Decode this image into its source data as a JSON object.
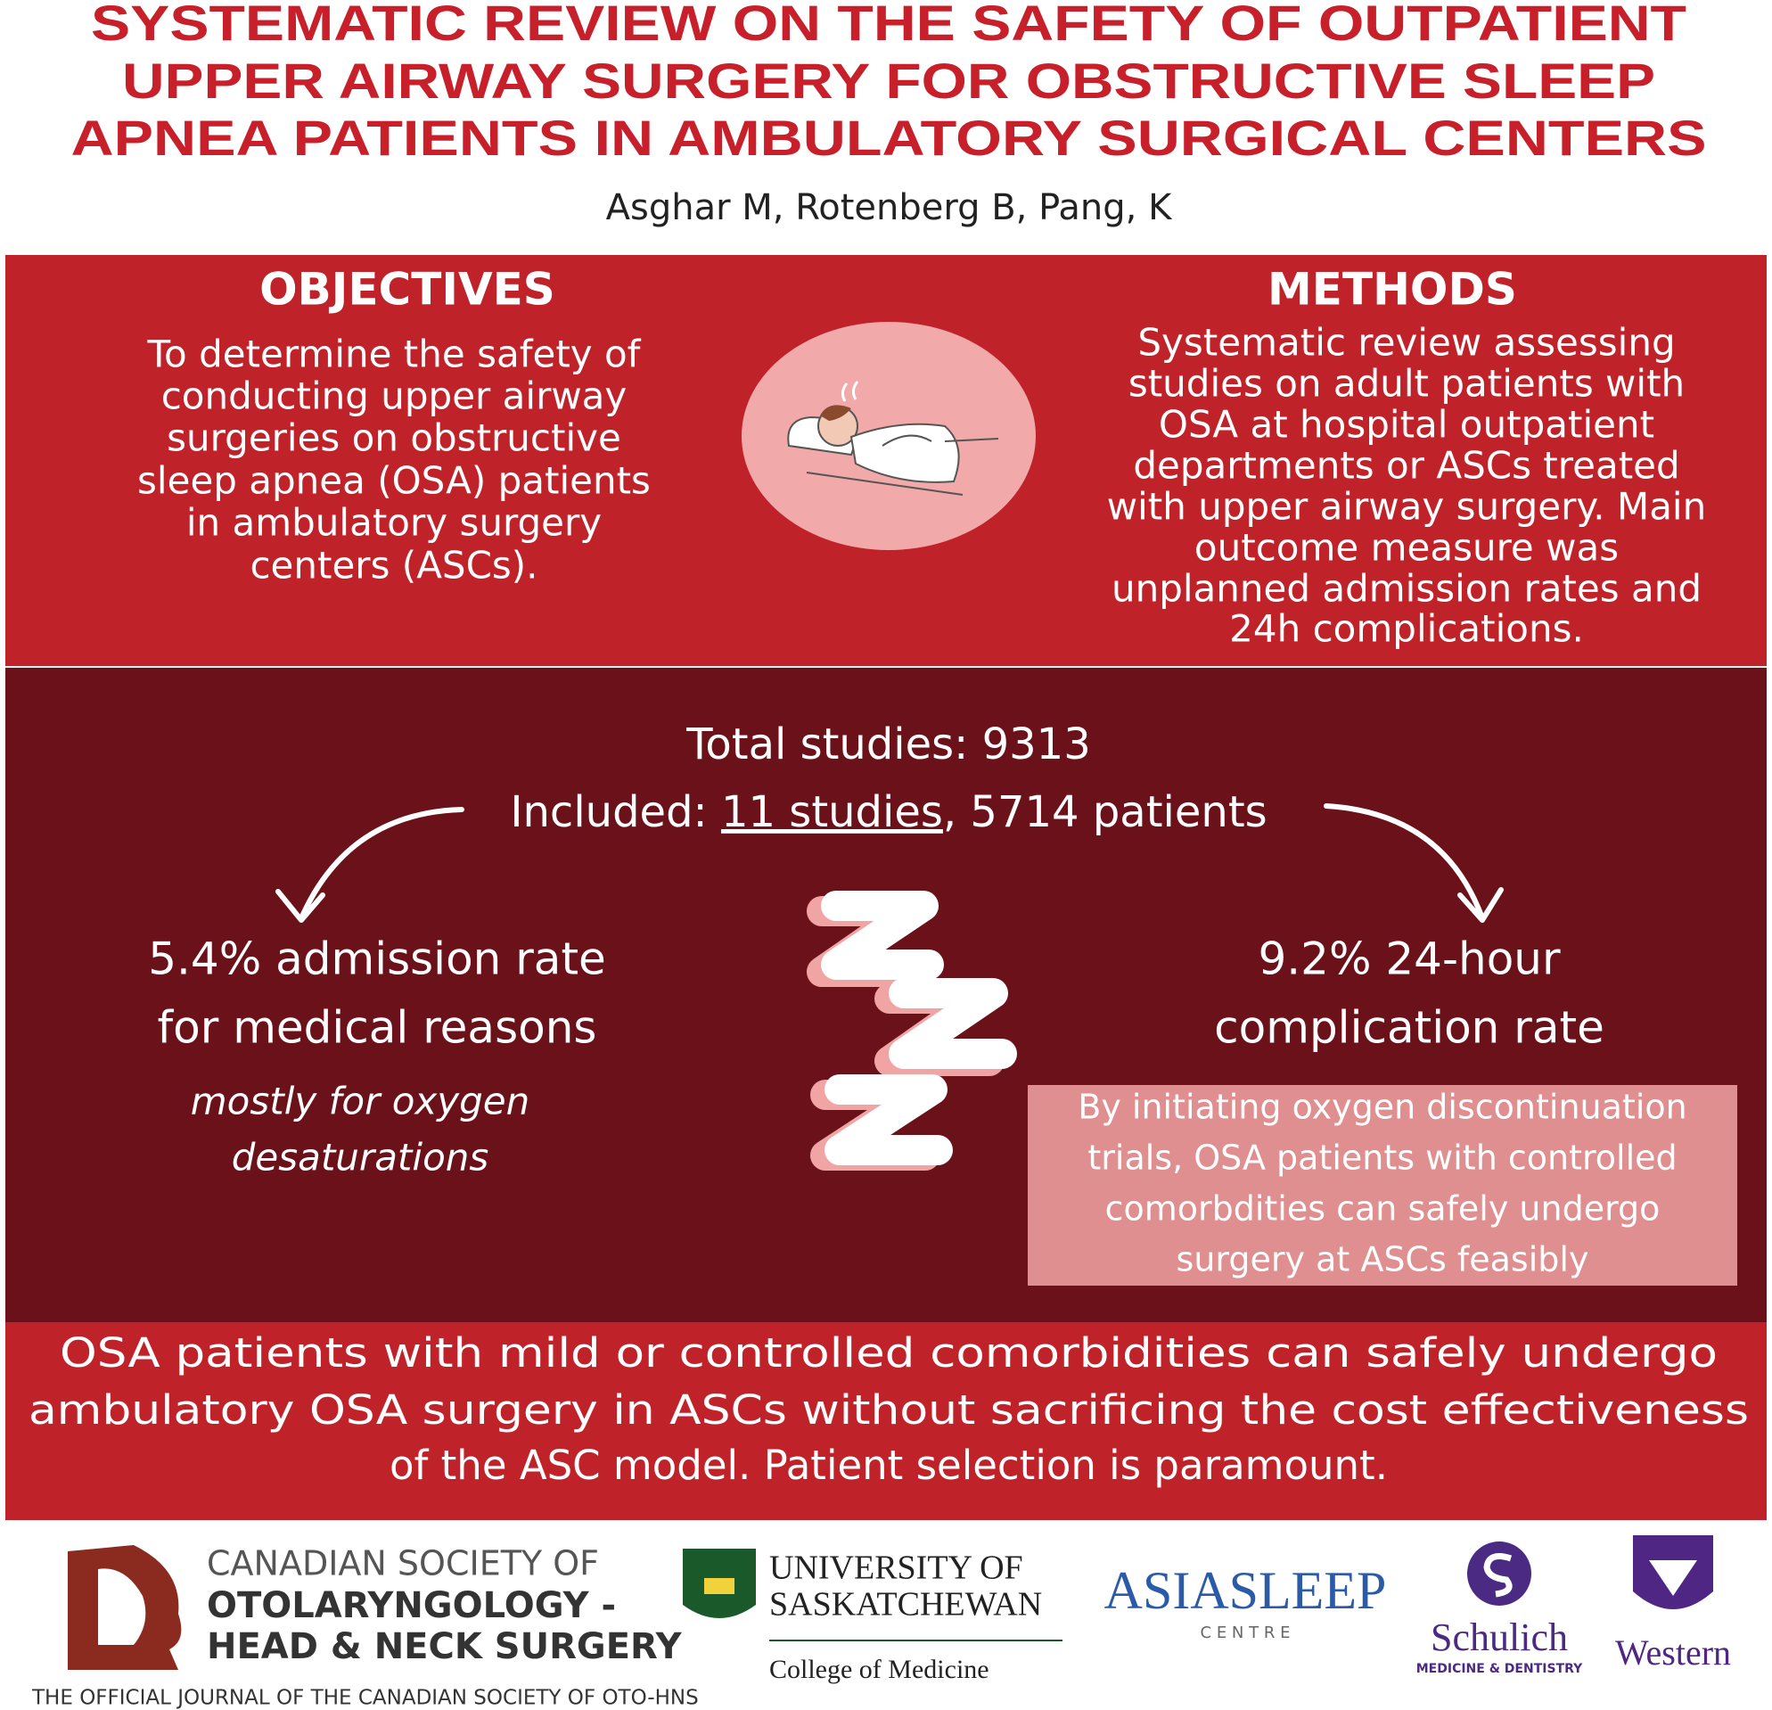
{
  "header": {
    "title_lines": [
      "SYSTEMATIC REVIEW ON THE SAFETY OF OUTPATIENT",
      "UPPER AIRWAY SURGERY FOR OBSTRUCTIVE SLEEP",
      "APNEA PATIENTS IN AMBULATORY SURGICAL CENTERS"
    ],
    "authors": "Asghar M, Rotenberg B, Pang, K"
  },
  "objectives": {
    "heading": "OBJECTIVES",
    "lines": [
      "To determine the safety of",
      "conducting upper airway",
      "surgeries on obstructive",
      "sleep apnea (OSA) patients",
      "in ambulatory surgery",
      "centers (ASCs)."
    ]
  },
  "methods": {
    "heading": "METHODS",
    "lines": [
      "Systematic review assessing",
      "studies on adult patients with",
      "OSA at hospital outpatient",
      "departments or ASCs treated",
      "with upper airway surgery. Main",
      "outcome measure was",
      "unplanned admission rates and",
      "24h complications."
    ]
  },
  "results": {
    "total": "Total studies: 9313",
    "included_parts": [
      "Included: ",
      "11 studies",
      ", 5714 patients"
    ],
    "left_lines": [
      "5.4% admission rate",
      "for medical reasons"
    ],
    "left_note_lines": [
      "mostly for oxygen",
      "desaturations"
    ],
    "right_lines": [
      "9.2% 24-hour",
      "complication rate"
    ],
    "box_lines": [
      "By initiating oxygen discontinuation",
      "trials, OSA patients with controlled",
      "comorbdities can safely undergo",
      "surgery at ASCs feasibly"
    ]
  },
  "conclusion": {
    "lines": [
      "OSA patients with mild or controlled comorbidities can safely undergo",
      "ambulatory OSA surgery in ASCs without sacrificing the cost effectiveness",
      "of the ASC model. Patient selection is paramount."
    ]
  },
  "footer": {
    "cso_lines": [
      "CANADIAN SOCIETY OF",
      "OTOLARYNGOLOGY -",
      "HEAD & NECK SURGERY"
    ],
    "journal": "THE OFFICIAL JOURNAL OF THE CANADIAN SOCIETY OF OTO-HNS",
    "usask_lines": [
      "UNIVERSITY OF",
      "SASKATCHEWAN"
    ],
    "usask_college": "College of Medicine",
    "asia_name": "ASIASLEEP",
    "asia_sub": "C E N T R E",
    "schulich": "Schulich",
    "schulich_sub": "MEDICINE & DENTISTRY",
    "western": "Western"
  }
}
